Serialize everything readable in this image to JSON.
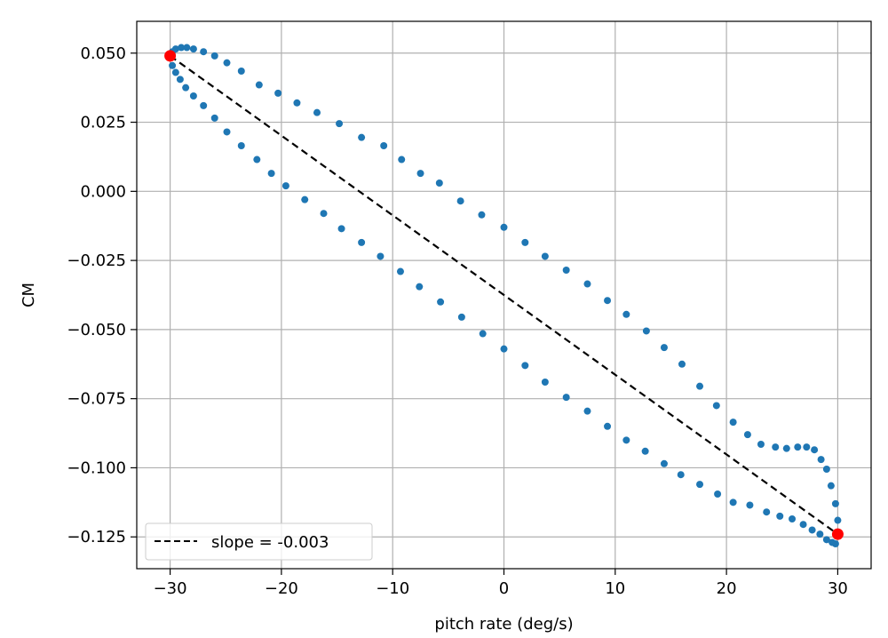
{
  "chart_data": {
    "type": "scatter",
    "title": "",
    "xlabel": "pitch rate (deg/s)",
    "ylabel": "CM",
    "xlim": [
      -33,
      33
    ],
    "ylim": [
      -0.1365,
      0.0615
    ],
    "xticks": [
      -30,
      -20,
      -10,
      0,
      10,
      20,
      30
    ],
    "xtick_labels": [
      "−30",
      "−20",
      "−10",
      "0",
      "10",
      "20",
      "30"
    ],
    "yticks": [
      -0.125,
      -0.1,
      -0.075,
      -0.05,
      -0.025,
      0.0,
      0.025,
      0.05
    ],
    "ytick_labels": [
      "−0.125",
      "−0.100",
      "−0.075",
      "−0.050",
      "−0.025",
      "0.000",
      "0.025",
      "0.050"
    ],
    "grid": true,
    "legend_position": "lower-left",
    "colors": {
      "points": "#1f77b4",
      "endpoints": "#ff0000",
      "fit_line": "#000000",
      "grid": "#b0b0b0"
    },
    "series": [
      {
        "kind": "scatter",
        "points": [
          [
            -30.0,
            0.049
          ],
          [
            -29.8,
            0.0505
          ],
          [
            -29.5,
            0.0515
          ],
          [
            -29.0,
            0.052
          ],
          [
            -28.5,
            0.052
          ],
          [
            -27.9,
            0.0515
          ],
          [
            -27.0,
            0.0505
          ],
          [
            -26.0,
            0.049
          ],
          [
            -24.9,
            0.0465
          ],
          [
            -23.6,
            0.0435
          ],
          [
            -22.0,
            0.0385
          ],
          [
            -20.3,
            0.0355
          ],
          [
            -18.6,
            0.032
          ],
          [
            -16.8,
            0.0285
          ],
          [
            -14.8,
            0.0245
          ],
          [
            -12.8,
            0.0195
          ],
          [
            -10.8,
            0.0165
          ],
          [
            -9.2,
            0.0115
          ],
          [
            -7.5,
            0.0065
          ],
          [
            -5.8,
            0.003
          ],
          [
            -3.9,
            -0.0035
          ],
          [
            -2.0,
            -0.0085
          ],
          [
            0.0,
            -0.013
          ],
          [
            1.9,
            -0.0185
          ],
          [
            3.7,
            -0.0235
          ],
          [
            5.6,
            -0.0285
          ],
          [
            7.5,
            -0.0335
          ],
          [
            9.3,
            -0.0395
          ],
          [
            11.0,
            -0.0445
          ],
          [
            12.8,
            -0.0505
          ],
          [
            14.4,
            -0.0565
          ],
          [
            16.0,
            -0.0625
          ],
          [
            17.6,
            -0.0705
          ],
          [
            19.1,
            -0.0775
          ],
          [
            20.6,
            -0.0835
          ],
          [
            21.9,
            -0.088
          ],
          [
            23.1,
            -0.0915
          ],
          [
            24.4,
            -0.0925
          ],
          [
            25.4,
            -0.093
          ],
          [
            26.4,
            -0.0925
          ],
          [
            27.2,
            -0.0925
          ],
          [
            27.9,
            -0.0935
          ],
          [
            28.5,
            -0.097
          ],
          [
            29.0,
            -0.1005
          ],
          [
            29.4,
            -0.1065
          ],
          [
            29.8,
            -0.113
          ],
          [
            30.0,
            -0.119
          ],
          [
            30.0,
            -0.124
          ],
          [
            29.8,
            -0.1275
          ],
          [
            29.5,
            -0.127
          ],
          [
            29.0,
            -0.126
          ],
          [
            28.4,
            -0.124
          ],
          [
            27.7,
            -0.1225
          ],
          [
            26.9,
            -0.1205
          ],
          [
            25.9,
            -0.1185
          ],
          [
            24.8,
            -0.1175
          ],
          [
            23.6,
            -0.116
          ],
          [
            22.1,
            -0.1135
          ],
          [
            20.6,
            -0.1125
          ],
          [
            19.2,
            -0.1095
          ],
          [
            17.6,
            -0.106
          ],
          [
            15.9,
            -0.1025
          ],
          [
            14.4,
            -0.0985
          ],
          [
            12.7,
            -0.094
          ],
          [
            11.0,
            -0.09
          ],
          [
            9.3,
            -0.085
          ],
          [
            7.5,
            -0.0795
          ],
          [
            5.6,
            -0.0745
          ],
          [
            3.7,
            -0.069
          ],
          [
            1.9,
            -0.063
          ],
          [
            0.0,
            -0.057
          ],
          [
            -1.9,
            -0.0515
          ],
          [
            -3.8,
            -0.0455
          ],
          [
            -5.7,
            -0.04
          ],
          [
            -7.6,
            -0.0345
          ],
          [
            -9.3,
            -0.029
          ],
          [
            -11.1,
            -0.0235
          ],
          [
            -12.8,
            -0.0185
          ],
          [
            -14.6,
            -0.0135
          ],
          [
            -16.2,
            -0.008
          ],
          [
            -17.9,
            -0.003
          ],
          [
            -19.6,
            0.002
          ],
          [
            -20.9,
            0.0065
          ],
          [
            -22.2,
            0.0115
          ],
          [
            -23.6,
            0.0165
          ],
          [
            -24.9,
            0.0215
          ],
          [
            -26.0,
            0.0265
          ],
          [
            -27.0,
            0.031
          ],
          [
            -27.9,
            0.0345
          ],
          [
            -28.6,
            0.0375
          ],
          [
            -29.1,
            0.0405
          ],
          [
            -29.5,
            0.043
          ],
          [
            -29.8,
            0.0455
          ]
        ]
      },
      {
        "kind": "endpoints",
        "points": [
          [
            -30.0,
            0.049
          ],
          [
            30.0,
            -0.124
          ]
        ]
      },
      {
        "kind": "fit_line",
        "name": "slope = -0.003",
        "points": [
          [
            -30.0,
            0.049
          ],
          [
            30.0,
            -0.124
          ]
        ]
      }
    ]
  }
}
